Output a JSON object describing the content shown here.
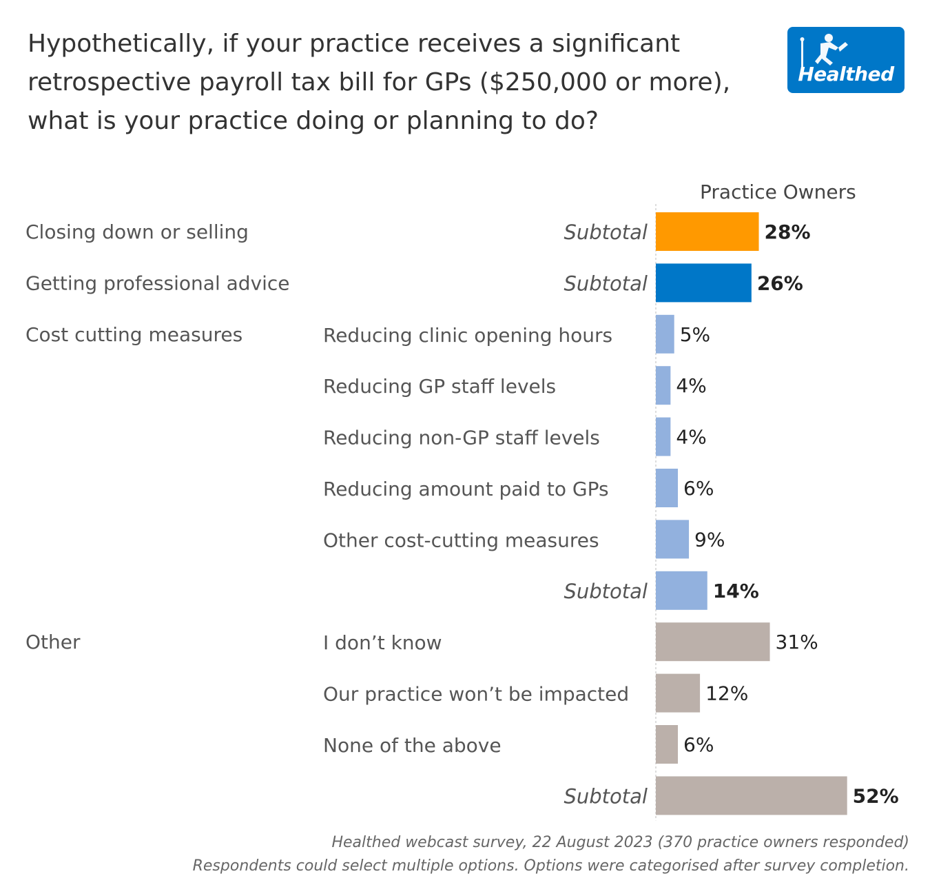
{
  "title": "Hypothetically, if your practice receives a significant retrospective payroll tax bill for GPs ($250,000 or more), what is your practice doing or planning to do?",
  "logo": {
    "text": "Healthed",
    "color": "#0077c8"
  },
  "column_header": "Practice Owners",
  "source_note": "Healthed webcast survey, 22 August 2023 (370 practice owners responded)",
  "method_note": "Respondents could select multiple options. Options were categorised after survey completion.",
  "colors": {
    "closing": "#ff9900",
    "advice": "#0077c8",
    "cost": "#92b1de",
    "other": "#bbb0aa"
  },
  "chart_data": {
    "type": "bar",
    "orientation": "horizontal",
    "unit": "%",
    "xlim": [
      0,
      100
    ],
    "groups": [
      {
        "name": "Closing down or selling",
        "color_key": "closing",
        "rows": [
          {
            "label": "Subtotal",
            "value": 28,
            "subtotal": true
          }
        ]
      },
      {
        "name": "Getting professional advice",
        "color_key": "advice",
        "rows": [
          {
            "label": "Subtotal",
            "value": 26,
            "subtotal": true
          }
        ]
      },
      {
        "name": "Cost cutting measures",
        "color_key": "cost",
        "rows": [
          {
            "label": "Reducing clinic opening hours",
            "value": 5,
            "subtotal": false
          },
          {
            "label": "Reducing GP staff levels",
            "value": 4,
            "subtotal": false
          },
          {
            "label": "Reducing non-GP staff levels",
            "value": 4,
            "subtotal": false
          },
          {
            "label": "Reducing amount paid to GPs",
            "value": 6,
            "subtotal": false
          },
          {
            "label": "Other cost-cutting measures",
            "value": 9,
            "subtotal": false
          },
          {
            "label": "Subtotal",
            "value": 14,
            "subtotal": true
          }
        ]
      },
      {
        "name": "Other",
        "color_key": "other",
        "rows": [
          {
            "label": "I don’t know",
            "value": 31,
            "subtotal": false
          },
          {
            "label": "Our practice won’t be impacted",
            "value": 12,
            "subtotal": false
          },
          {
            "label": "None of the above",
            "value": 6,
            "subtotal": false
          },
          {
            "label": "Subtotal",
            "value": 52,
            "subtotal": true
          }
        ]
      }
    ]
  }
}
